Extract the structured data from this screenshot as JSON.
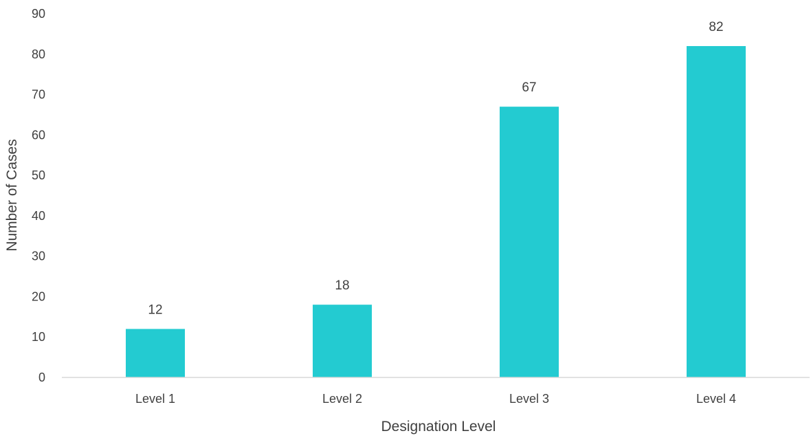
{
  "chart_data": {
    "type": "bar",
    "title": "",
    "xlabel": "Designation Level",
    "ylabel": "Number of Cases",
    "categories": [
      "Level 1",
      "Level 2",
      "Level 3",
      "Level 4"
    ],
    "values": [
      12,
      18,
      67,
      82
    ],
    "ylim": [
      0,
      90
    ],
    "yticks": [
      0,
      10,
      20,
      30,
      40,
      50,
      60,
      70,
      80,
      90
    ],
    "grid": false,
    "legend": "none",
    "data_labels": true,
    "bar_color": "#23CBD1",
    "axis_color": "#D9D9D9",
    "text_color": "#404040"
  }
}
